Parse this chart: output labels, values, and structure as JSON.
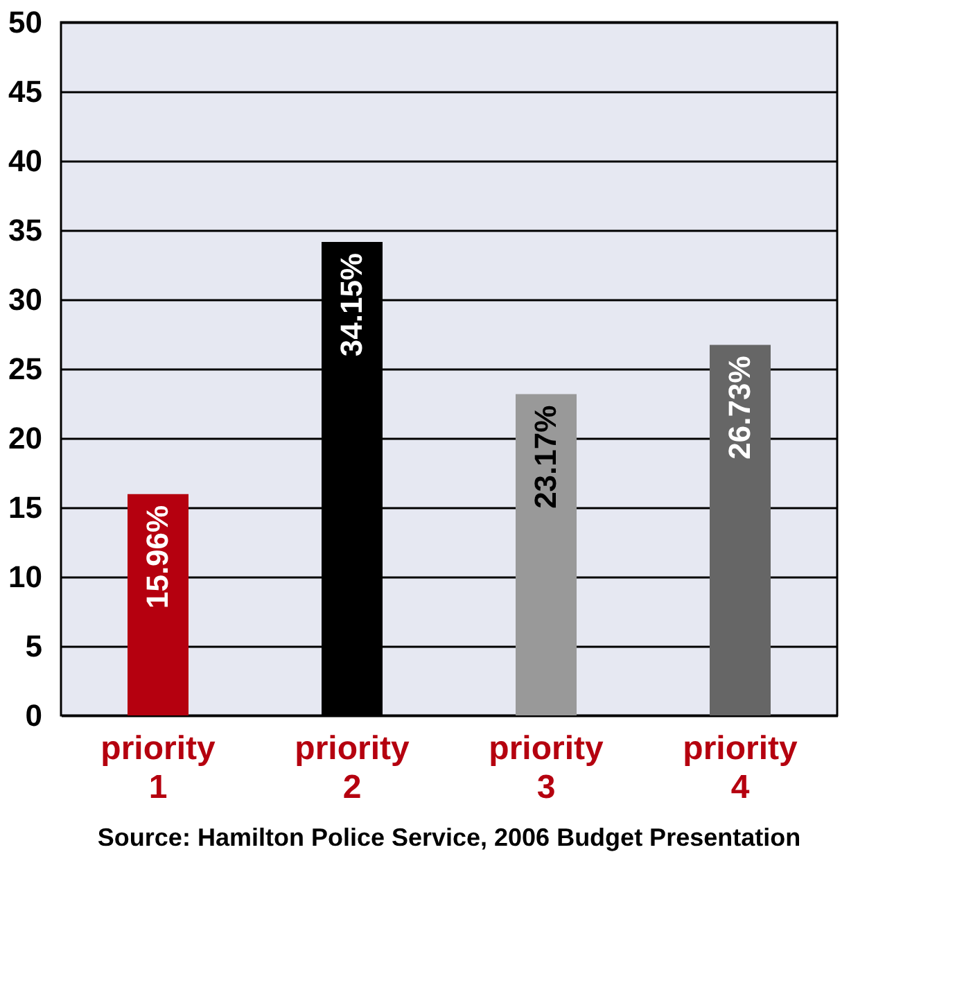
{
  "chart_data": {
    "type": "bar",
    "categories": [
      "priority 1",
      "priority 2",
      "priority 3",
      "priority 4"
    ],
    "values": [
      15.96,
      34.15,
      23.17,
      26.73
    ],
    "colors": [
      "#b5000f",
      "#000000",
      "#999999",
      "#666666"
    ],
    "value_labels": [
      "15.96%",
      "34.15%",
      "23.17%",
      "26.73%"
    ],
    "ylim": [
      0,
      50
    ],
    "yticks": [
      0,
      5,
      10,
      15,
      20,
      25,
      30,
      35,
      40,
      45,
      50
    ],
    "grid": "y",
    "annotations": [
      "Source:  Hamilton Police Service, 2006 Budget Presentation"
    ]
  }
}
